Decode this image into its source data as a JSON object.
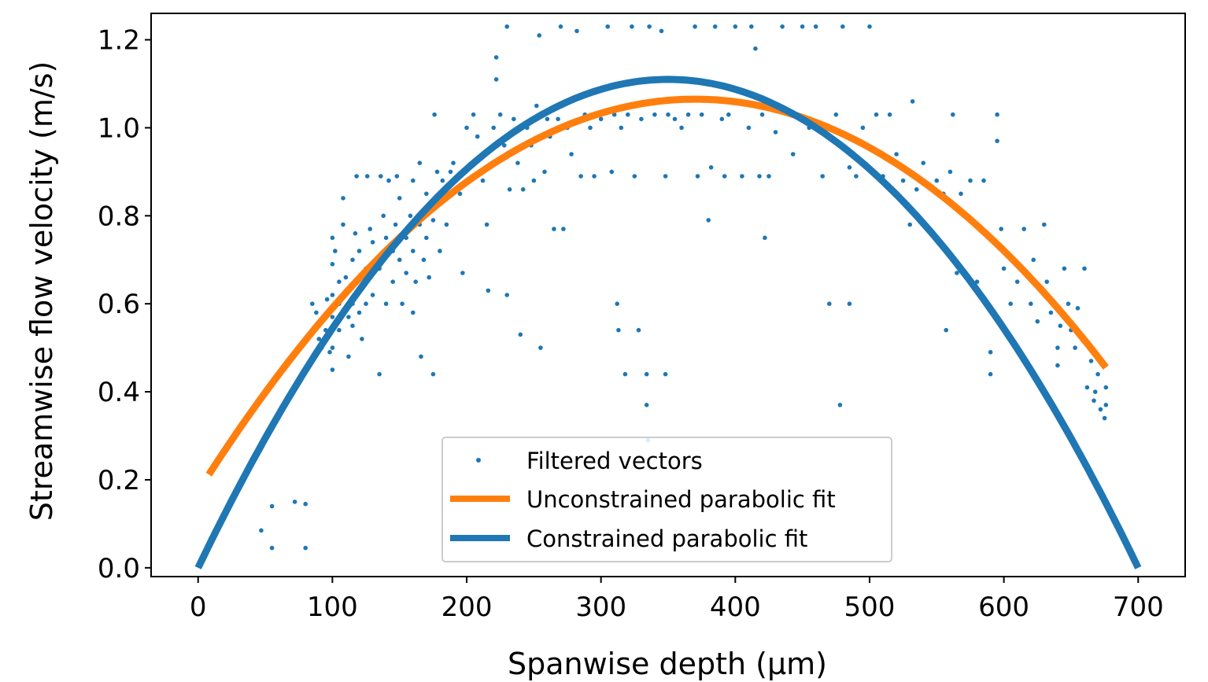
{
  "chart_data": {
    "type": "scatter",
    "xlabel": "Spanwise depth (μm)",
    "ylabel": "Streamwise flow velocity (m/s)",
    "xlim": [
      -35,
      735
    ],
    "ylim": [
      -0.02,
      1.26
    ],
    "x_ticks": [
      0,
      100,
      200,
      300,
      400,
      500,
      600,
      700
    ],
    "y_ticks": [
      0.0,
      0.2,
      0.4,
      0.6,
      0.8,
      1.0,
      1.2
    ],
    "x_tick_labels": [
      "0",
      "100",
      "200",
      "300",
      "400",
      "500",
      "600",
      "700"
    ],
    "y_tick_labels": [
      "0.0",
      "0.2",
      "0.4",
      "0.6",
      "0.8",
      "1.0",
      "1.2"
    ],
    "grid": false,
    "legend_position": "bottom-center",
    "series": [
      {
        "name": "Filtered vectors",
        "kind": "scatter",
        "color": "#1f77b4",
        "points": [
          [
            47,
            0.085
          ],
          [
            55,
            0.045
          ],
          [
            55,
            0.14
          ],
          [
            72,
            0.15
          ],
          [
            80,
            0.045
          ],
          [
            80,
            0.145
          ],
          [
            85,
            0.6
          ],
          [
            88,
            0.58
          ],
          [
            90,
            0.52
          ],
          [
            92,
            0.5
          ],
          [
            95,
            0.54
          ],
          [
            96,
            0.61
          ],
          [
            98,
            0.49
          ],
          [
            100,
            0.57
          ],
          [
            100,
            0.45
          ],
          [
            100,
            0.62
          ],
          [
            100,
            0.75
          ],
          [
            100,
            0.69
          ],
          [
            100,
            0.5
          ],
          [
            102,
            0.72
          ],
          [
            105,
            0.6
          ],
          [
            105,
            0.65
          ],
          [
            105,
            0.54
          ],
          [
            108,
            0.78
          ],
          [
            108,
            0.84
          ],
          [
            110,
            0.66
          ],
          [
            112,
            0.57
          ],
          [
            112,
            0.48
          ],
          [
            115,
            0.55
          ],
          [
            115,
            0.7
          ],
          [
            115,
            0.6
          ],
          [
            117,
            0.76
          ],
          [
            118,
            0.65
          ],
          [
            118,
            0.89
          ],
          [
            120,
            0.72
          ],
          [
            120,
            0.58
          ],
          [
            122,
            0.52
          ],
          [
            125,
            0.6
          ],
          [
            125,
            0.68
          ],
          [
            126,
            0.89
          ],
          [
            128,
            0.77
          ],
          [
            130,
            0.74
          ],
          [
            130,
            0.62
          ],
          [
            132,
            0.7
          ],
          [
            135,
            0.44
          ],
          [
            135,
            0.68
          ],
          [
            136,
            0.89
          ],
          [
            138,
            0.8
          ],
          [
            140,
            0.75
          ],
          [
            140,
            0.6
          ],
          [
            142,
            0.88
          ],
          [
            145,
            0.72
          ],
          [
            145,
            0.65
          ],
          [
            147,
            0.78
          ],
          [
            148,
            0.89
          ],
          [
            150,
            0.7
          ],
          [
            150,
            0.84
          ],
          [
            152,
            0.6
          ],
          [
            155,
            0.75
          ],
          [
            155,
            0.67
          ],
          [
            158,
            0.8
          ],
          [
            160,
            0.72
          ],
          [
            160,
            0.88
          ],
          [
            160,
            0.58
          ],
          [
            162,
            0.65
          ],
          [
            165,
            0.78
          ],
          [
            165,
            0.92
          ],
          [
            166,
            0.48
          ],
          [
            168,
            0.7
          ],
          [
            170,
            0.75
          ],
          [
            170,
            0.85
          ],
          [
            172,
            0.66
          ],
          [
            175,
            0.79
          ],
          [
            175,
            0.44
          ],
          [
            176,
            1.03
          ],
          [
            178,
            0.9
          ],
          [
            180,
            0.72
          ],
          [
            182,
            0.88
          ],
          [
            185,
            0.78
          ],
          [
            188,
            0.9
          ],
          [
            190,
            0.92
          ],
          [
            195,
            0.85
          ],
          [
            197,
            0.67
          ],
          [
            200,
            0.88
          ],
          [
            200,
            1.0
          ],
          [
            205,
            1.03
          ],
          [
            208,
            0.98
          ],
          [
            210,
            0.93
          ],
          [
            212,
            0.88
          ],
          [
            215,
            0.78
          ],
          [
            216,
            0.63
          ],
          [
            220,
            1.0
          ],
          [
            222,
            1.16
          ],
          [
            222,
            1.11
          ],
          [
            225,
            1.03
          ],
          [
            228,
            0.96
          ],
          [
            230,
            1.23
          ],
          [
            230,
            0.62
          ],
          [
            232,
            0.86
          ],
          [
            235,
            1.02
          ],
          [
            238,
            0.92
          ],
          [
            240,
            0.53
          ],
          [
            242,
            0.86
          ],
          [
            245,
            1.0
          ],
          [
            248,
            0.96
          ],
          [
            250,
            0.88
          ],
          [
            252,
            1.05
          ],
          [
            254,
            1.21
          ],
          [
            255,
            0.5
          ],
          [
            258,
            0.9
          ],
          [
            260,
            1.02
          ],
          [
            262,
            0.98
          ],
          [
            265,
            0.77
          ],
          [
            268,
            1.02
          ],
          [
            270,
            1.23
          ],
          [
            272,
            0.77
          ],
          [
            275,
            1.0
          ],
          [
            278,
            0.94
          ],
          [
            282,
            1.22
          ],
          [
            285,
            0.89
          ],
          [
            288,
            1.03
          ],
          [
            292,
            1.0
          ],
          [
            295,
            0.89
          ],
          [
            300,
            1.02
          ],
          [
            305,
            1.23
          ],
          [
            308,
            0.9
          ],
          [
            310,
            1.03
          ],
          [
            312,
            0.6
          ],
          [
            313,
            0.54
          ],
          [
            315,
            1.0
          ],
          [
            318,
            0.44
          ],
          [
            320,
            1.03
          ],
          [
            323,
            1.23
          ],
          [
            325,
            0.89
          ],
          [
            328,
            0.54
          ],
          [
            330,
            1.02
          ],
          [
            334,
            0.37
          ],
          [
            334,
            0.44
          ],
          [
            335,
            0.29
          ],
          [
            336,
            1.23
          ],
          [
            340,
            1.03
          ],
          [
            345,
            1.22
          ],
          [
            348,
            0.89
          ],
          [
            348,
            0.44
          ],
          [
            350,
            1.03
          ],
          [
            355,
            1.02
          ],
          [
            360,
            1.0
          ],
          [
            365,
            1.03
          ],
          [
            370,
            1.23
          ],
          [
            372,
            0.89
          ],
          [
            375,
            1.03
          ],
          [
            380,
            0.79
          ],
          [
            382,
            0.91
          ],
          [
            385,
            1.23
          ],
          [
            390,
            1.02
          ],
          [
            392,
            0.89
          ],
          [
            395,
            1.03
          ],
          [
            400,
            1.23
          ],
          [
            405,
            0.89
          ],
          [
            410,
            1.0
          ],
          [
            412,
            1.23
          ],
          [
            415,
            1.18
          ],
          [
            418,
            0.89
          ],
          [
            420,
            1.03
          ],
          [
            422,
            0.75
          ],
          [
            425,
            0.89
          ],
          [
            430,
            0.99
          ],
          [
            435,
            1.23
          ],
          [
            440,
            1.03
          ],
          [
            443,
            0.94
          ],
          [
            450,
            1.23
          ],
          [
            455,
            1.0
          ],
          [
            460,
            1.23
          ],
          [
            465,
            0.89
          ],
          [
            470,
            0.6
          ],
          [
            475,
            1.03
          ],
          [
            478,
            0.37
          ],
          [
            480,
            1.23
          ],
          [
            485,
            0.6
          ],
          [
            485,
            0.91
          ],
          [
            490,
            0.89
          ],
          [
            495,
            1.0
          ],
          [
            500,
            1.23
          ],
          [
            505,
            1.03
          ],
          [
            510,
            0.89
          ],
          [
            515,
            1.03
          ],
          [
            520,
            0.94
          ],
          [
            525,
            0.88
          ],
          [
            530,
            0.78
          ],
          [
            532,
            1.06
          ],
          [
            535,
            0.86
          ],
          [
            540,
            0.92
          ],
          [
            545,
            0.77
          ],
          [
            550,
            0.88
          ],
          [
            555,
            0.85
          ],
          [
            557,
            0.54
          ],
          [
            560,
            0.9
          ],
          [
            562,
            1.03
          ],
          [
            565,
            0.67
          ],
          [
            568,
            0.85
          ],
          [
            570,
            0.8
          ],
          [
            575,
            0.88
          ],
          [
            578,
            0.78
          ],
          [
            580,
            0.65
          ],
          [
            585,
            0.88
          ],
          [
            590,
            0.49
          ],
          [
            590,
            0.44
          ],
          [
            595,
            1.03
          ],
          [
            595,
            0.97
          ],
          [
            598,
            0.77
          ],
          [
            600,
            0.68
          ],
          [
            605,
            0.6
          ],
          [
            610,
            0.65
          ],
          [
            615,
            0.77
          ],
          [
            620,
            0.6
          ],
          [
            622,
            0.7
          ],
          [
            625,
            0.56
          ],
          [
            630,
            0.78
          ],
          [
            632,
            0.65
          ],
          [
            635,
            0.58
          ],
          [
            640,
            0.5
          ],
          [
            640,
            0.46
          ],
          [
            642,
            0.55
          ],
          [
            645,
            0.68
          ],
          [
            648,
            0.6
          ],
          [
            650,
            0.54
          ],
          [
            653,
            0.5
          ],
          [
            655,
            0.59
          ],
          [
            660,
            0.68
          ],
          [
            662,
            0.41
          ],
          [
            665,
            0.47
          ],
          [
            667,
            0.38
          ],
          [
            668,
            0.4
          ],
          [
            670,
            0.44
          ],
          [
            672,
            0.36
          ],
          [
            675,
            0.34
          ],
          [
            676,
            0.41
          ],
          [
            676,
            0.37
          ]
        ]
      },
      {
        "name": "Unconstrained parabolic fit",
        "kind": "line",
        "color": "#ff7f0e",
        "equation": "v = 1.065 - 6.51e-6 * (x - 370)^2",
        "x_range": [
          8,
          676
        ]
      },
      {
        "name": "Constrained parabolic fit",
        "kind": "line",
        "color": "#1f77b4",
        "equation": "v = 1.11 * (1 - ((x - 350) / 350)^2)",
        "x_range": [
          0,
          700
        ]
      }
    ]
  }
}
